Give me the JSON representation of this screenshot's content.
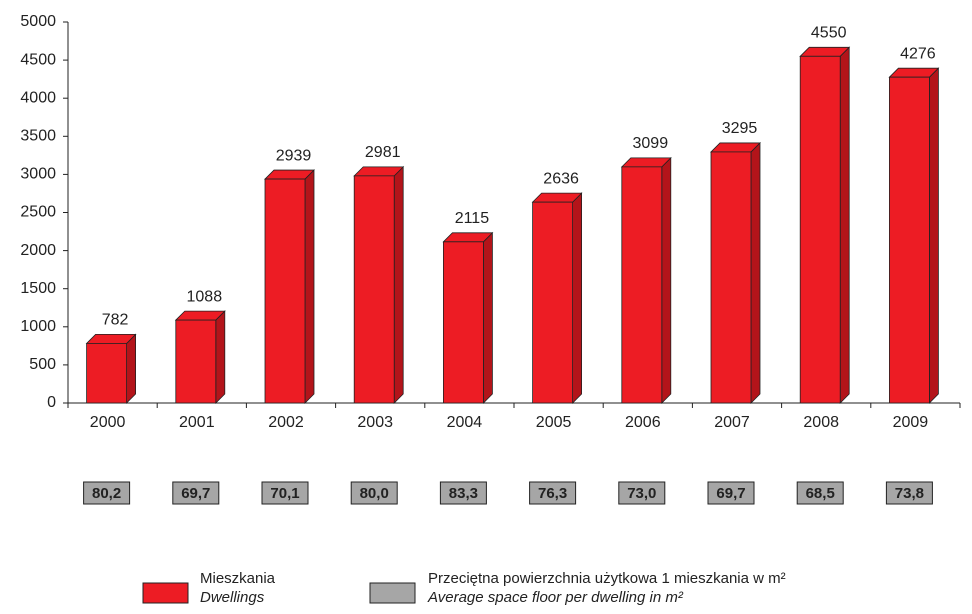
{
  "chart_data": {
    "type": "bar",
    "categories": [
      "2000",
      "2001",
      "2002",
      "2003",
      "2004",
      "2005",
      "2006",
      "2007",
      "2008",
      "2009"
    ],
    "series": [
      {
        "name": "Mieszkania",
        "name_en": "Dwellings",
        "color": "#ed1c24",
        "values": [
          782,
          1088,
          2939,
          2981,
          2115,
          2636,
          3099,
          3295,
          4550,
          4276
        ]
      },
      {
        "name": "Przeciętna powierzchnia użytkowa 1 mieszkania w m²",
        "name_en": "Average space floor per dwelling in m²",
        "color": "#a6a6a6",
        "values": [
          80.2,
          69.7,
          70.1,
          80.0,
          83.3,
          76.3,
          73.0,
          69.7,
          68.5,
          73.8
        ],
        "value_labels": [
          "80,2",
          "69,7",
          "70,1",
          "80,0",
          "83,3",
          "76,3",
          "73,0",
          "69,7",
          "68,5",
          "73,8"
        ]
      }
    ],
    "ylim": [
      0,
      5000
    ],
    "yticks": [
      0,
      500,
      1000,
      1500,
      2000,
      2500,
      3000,
      3500,
      4000,
      4500,
      5000
    ]
  }
}
